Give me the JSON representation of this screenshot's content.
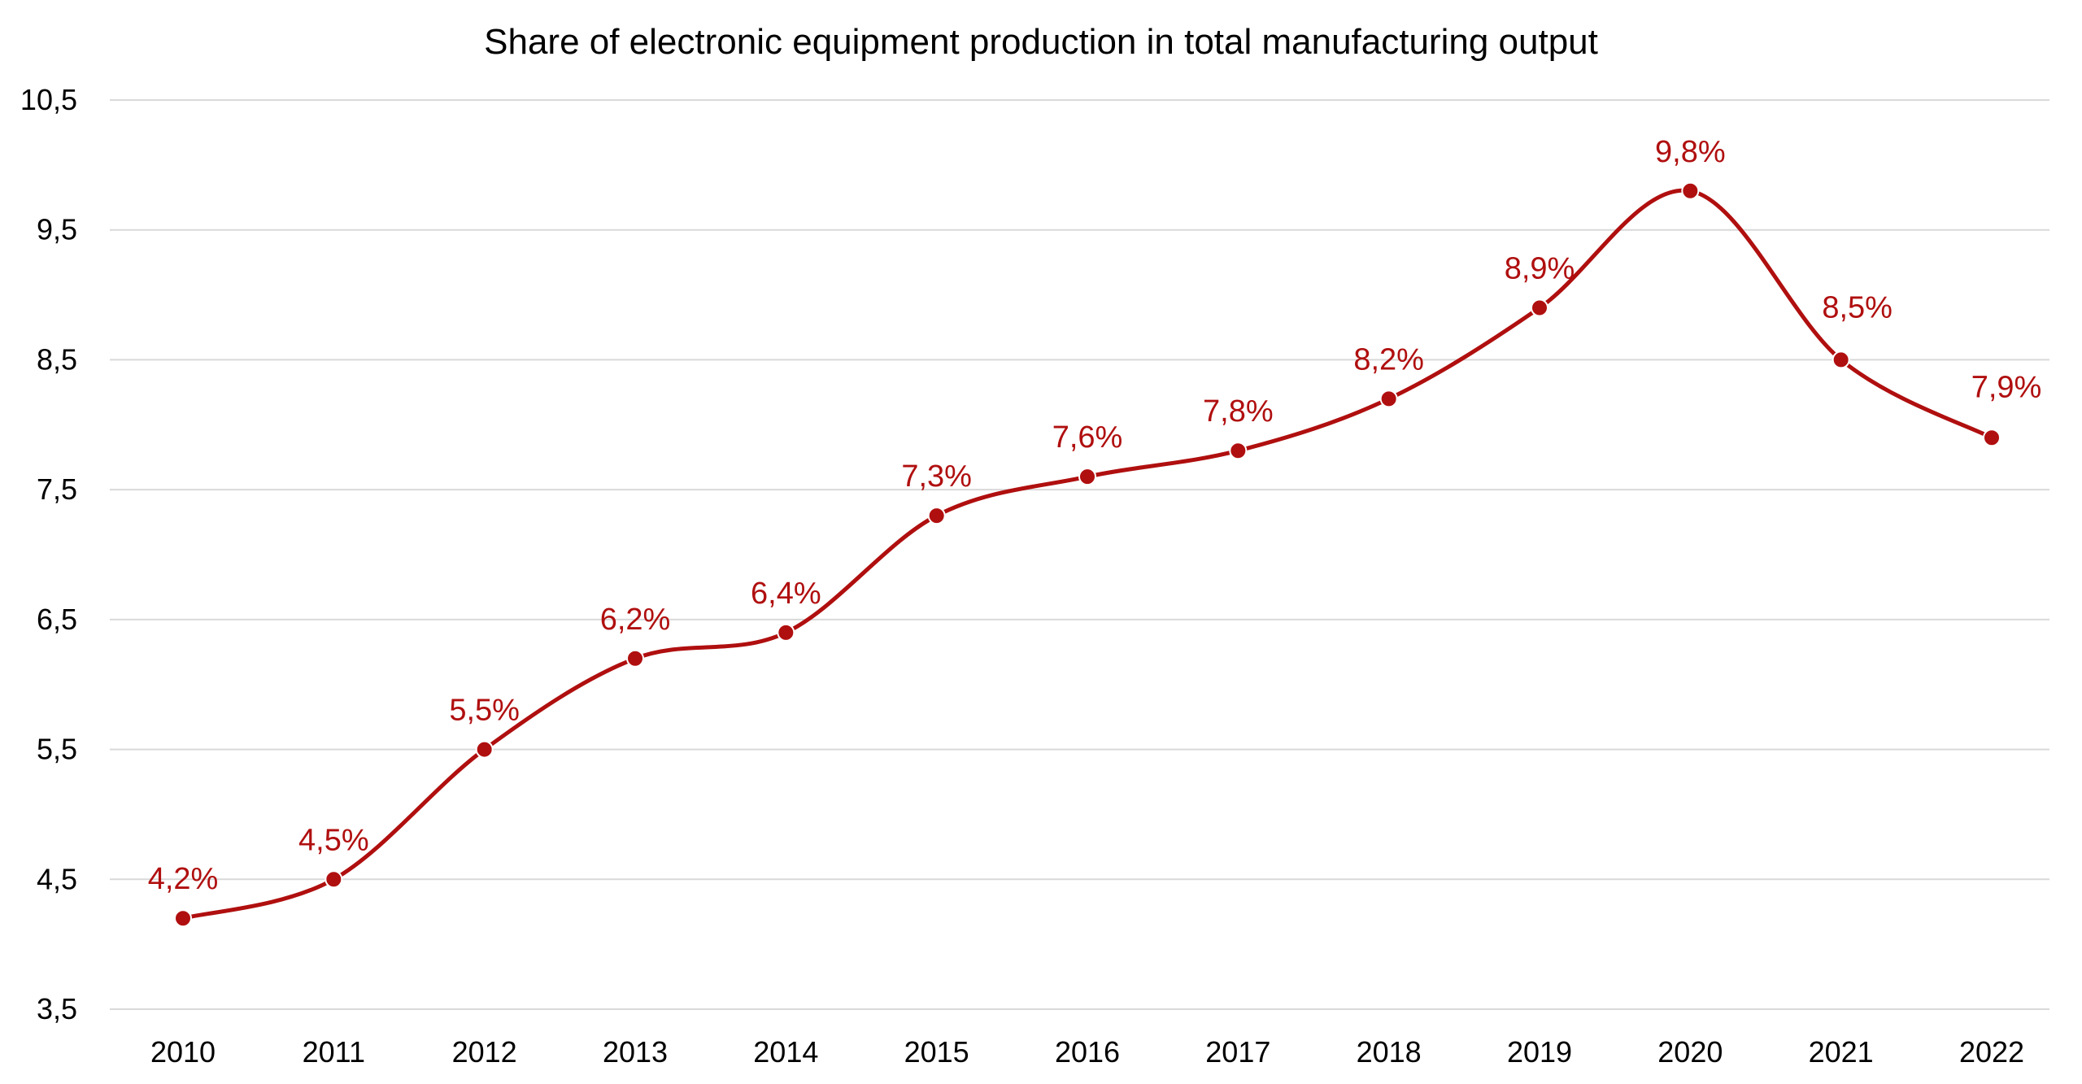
{
  "chart_data": {
    "type": "line",
    "title": "Share of electronic equipment production in total manufacturing output",
    "xlabel": "",
    "ylabel": "",
    "categories": [
      "2010",
      "2011",
      "2012",
      "2013",
      "2014",
      "2015",
      "2016",
      "2017",
      "2018",
      "2019",
      "2020",
      "2021",
      "2022"
    ],
    "series": [
      {
        "values": [
          4.2,
          4.5,
          5.5,
          6.2,
          6.4,
          7.3,
          7.6,
          7.8,
          8.2,
          8.9,
          9.8,
          8.5,
          7.9
        ],
        "data_labels": [
          "4,2%",
          "4,5%",
          "5,5%",
          "6,2%",
          "6,4%",
          "7,3%",
          "7,6%",
          "7,8%",
          "8,2%",
          "8,9%",
          "9,8%",
          "8,5%",
          "7,9%"
        ],
        "color": "#b00f0f"
      }
    ],
    "ylim": [
      3.5,
      10.5
    ],
    "yticks": [
      3.5,
      4.5,
      5.5,
      6.5,
      7.5,
      8.5,
      9.5,
      10.5
    ],
    "ytick_labels": [
      "3,5",
      "4,5",
      "5,5",
      "6,5",
      "7,5",
      "8,5",
      "9,5",
      "10,5"
    ],
    "grid": true,
    "smooth": true,
    "legend": "none",
    "colors": {
      "line": "#b00f0f",
      "grid": "#d9d9d9",
      "text": "#000000"
    }
  }
}
